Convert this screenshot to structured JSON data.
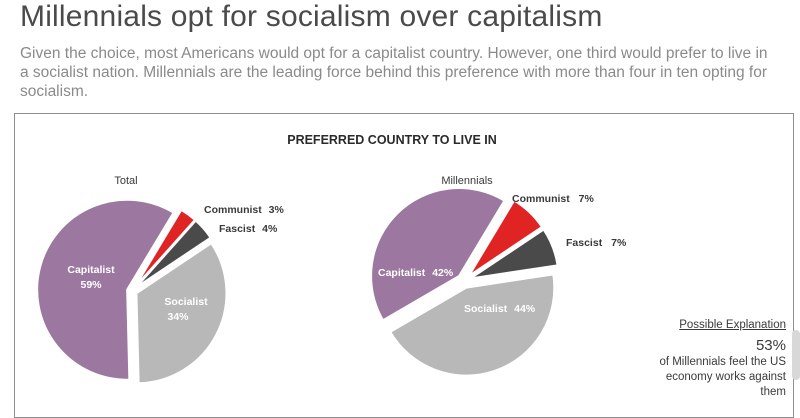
{
  "header": {
    "title": "Millennials opt for socialism over capitalism",
    "subtitle": "Given the choice, most Americans would opt for a capitalist country. However, one third would prefer to live in a socialist nation. Millennials are the leading force behind this preference with more than four in ten opting for socialism."
  },
  "colors": {
    "capitalist": "#9c779f",
    "communist": "#e02424",
    "fascist": "#4a4a4a",
    "socialist": "#b8b8b8"
  },
  "chart_data": {
    "type": "pie",
    "title": "PREFERRED COUNTRY TO LIVE IN",
    "charts": [
      {
        "name": "Total",
        "slices": [
          {
            "label": "Communist",
            "value_text": "3%",
            "value": 3
          },
          {
            "label": "Fascist",
            "value_text": "4%",
            "value": 4
          },
          {
            "label": "Socialist",
            "value_text": "34%",
            "value": 34
          },
          {
            "label": "Capitalist",
            "value_text": "59%",
            "value": 59
          }
        ]
      },
      {
        "name": "Millennials",
        "slices": [
          {
            "label": "Communist",
            "value_text": "7%",
            "value": 7
          },
          {
            "label": "Fascist",
            "value_text": "7%",
            "value": 7
          },
          {
            "label": "Socialist",
            "value_text": "44%",
            "value": 44
          },
          {
            "label": "Capitalist",
            "value_text": "42%",
            "value": 42
          }
        ]
      }
    ]
  },
  "explanation": {
    "title": "Possible Explanation",
    "value": "53%",
    "text": "of Millennials feel the US economy works against them"
  }
}
